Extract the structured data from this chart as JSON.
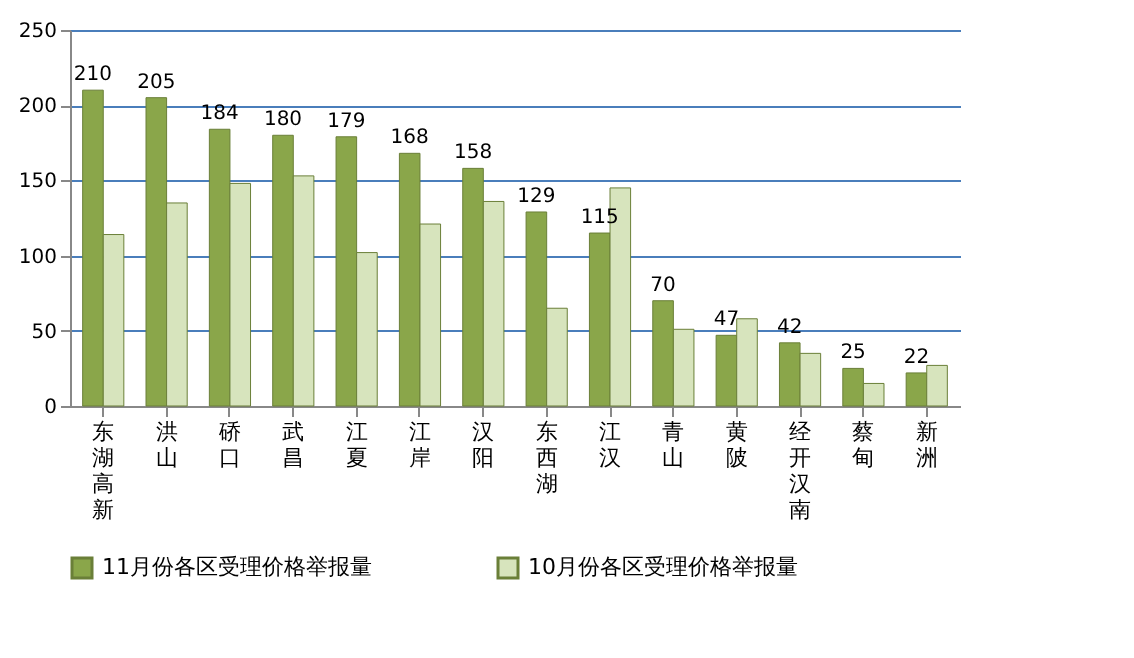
{
  "chart_data": {
    "type": "bar",
    "categories": [
      "东湖高新",
      "洪山",
      "硚口",
      "武昌",
      "江夏",
      "江岸",
      "汉阳",
      "东西湖",
      "江汉",
      "青山",
      "黄陂",
      "经开汉南",
      "蔡甸",
      "新洲"
    ],
    "series": [
      {
        "name": "11月份各区受理价格举报量",
        "color": "#8aa64a",
        "values": [
          210,
          205,
          184,
          180,
          179,
          168,
          158,
          129,
          115,
          70,
          47,
          42,
          25,
          22
        ],
        "value_labels": [
          "210",
          "205",
          "184",
          "180",
          "179",
          "168",
          "158",
          "129",
          "115",
          "70",
          "47",
          "42",
          "25",
          "22"
        ]
      },
      {
        "name": "10月份各区受理价格举报量",
        "color": "#d7e4bd",
        "values": [
          114,
          135,
          148,
          153,
          102,
          121,
          136,
          65,
          145,
          51,
          58,
          35,
          15,
          27
        ]
      }
    ],
    "ylim": [
      0,
      250
    ],
    "yticks": [
      0,
      50,
      100,
      150,
      200,
      250
    ],
    "grid": "y",
    "legend": "bottom"
  }
}
